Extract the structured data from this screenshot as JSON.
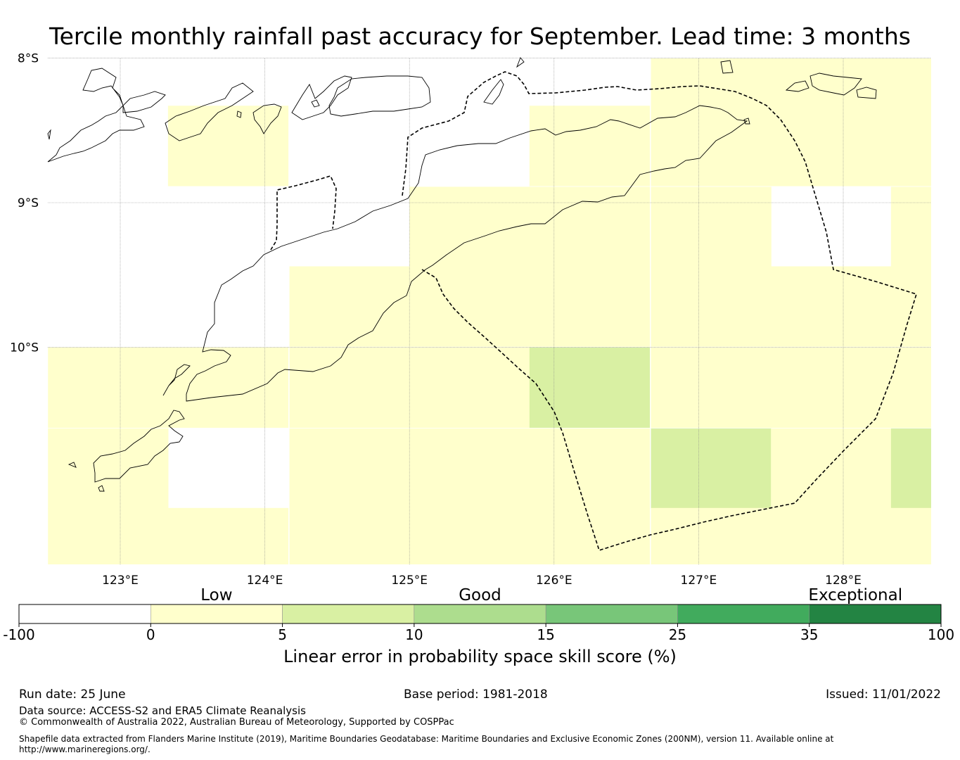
{
  "title": "Tercile monthly rainfall past accuracy for September. Lead time: 3 months",
  "lat_labels": [
    "8°S",
    "9°S",
    "10°S"
  ],
  "lon_labels": [
    "123°E",
    "124°E",
    "125°E",
    "126°E",
    "127°E",
    "128°E"
  ],
  "map": {
    "lon_range": [
      122.5,
      128.6
    ],
    "lat_range": [
      -11.5,
      -8.0
    ],
    "grid_lons": [
      123,
      124,
      125,
      126,
      127,
      128
    ],
    "grid_lats": [
      -8,
      -9,
      -10
    ],
    "colors": {
      "ocean": "#ffffff",
      "coast": "#000000",
      "eez": "#000000",
      "grid": "#888888"
    },
    "cell_size_deg": [
      0.833,
      0.556
    ],
    "cells": [
      {
        "lon": 126.67,
        "lat": -8.0,
        "category": "0 to 5"
      },
      {
        "lon": 127.5,
        "lat": -8.0,
        "category": "0 to 5"
      },
      {
        "lon": 128.33,
        "lat": -8.0,
        "category": "0 to 5"
      },
      {
        "lon": 123.33,
        "lat": -8.33,
        "category": "0 to 5"
      },
      {
        "lon": 125.83,
        "lat": -8.33,
        "category": "0 to 5"
      },
      {
        "lon": 126.67,
        "lat": -8.33,
        "category": "0 to 5"
      },
      {
        "lon": 127.5,
        "lat": -8.33,
        "category": "0 to 5"
      },
      {
        "lon": 128.33,
        "lat": -8.33,
        "category": "0 to 5"
      },
      {
        "lon": 125.0,
        "lat": -8.89,
        "category": "0 to 5"
      },
      {
        "lon": 125.83,
        "lat": -8.89,
        "category": "0 to 5"
      },
      {
        "lon": 126.67,
        "lat": -8.89,
        "category": "0 to 5"
      },
      {
        "lon": 128.33,
        "lat": -8.89,
        "category": "0 to 5"
      },
      {
        "lon": 124.17,
        "lat": -9.44,
        "category": "0 to 5"
      },
      {
        "lon": 125.0,
        "lat": -9.44,
        "category": "0 to 5"
      },
      {
        "lon": 125.83,
        "lat": -9.44,
        "category": "0 to 5"
      },
      {
        "lon": 126.67,
        "lat": -9.44,
        "category": "0 to 5"
      },
      {
        "lon": 127.5,
        "lat": -9.44,
        "category": "0 to 5"
      },
      {
        "lon": 128.33,
        "lat": -9.44,
        "category": "0 to 5"
      },
      {
        "lon": 122.5,
        "lat": -10.0,
        "category": "0 to 5"
      },
      {
        "lon": 123.33,
        "lat": -10.0,
        "category": "0 to 5"
      },
      {
        "lon": 124.17,
        "lat": -10.0,
        "category": "0 to 5"
      },
      {
        "lon": 125.0,
        "lat": -10.0,
        "category": "0 to 5"
      },
      {
        "lon": 125.83,
        "lat": -10.0,
        "category": "5 to 10"
      },
      {
        "lon": 126.67,
        "lat": -10.0,
        "category": "0 to 5"
      },
      {
        "lon": 127.5,
        "lat": -10.0,
        "category": "0 to 5"
      },
      {
        "lon": 128.33,
        "lat": -10.0,
        "category": "0 to 5"
      },
      {
        "lon": 122.5,
        "lat": -10.56,
        "category": "0 to 5"
      },
      {
        "lon": 124.17,
        "lat": -10.56,
        "category": "0 to 5"
      },
      {
        "lon": 125.0,
        "lat": -10.56,
        "category": "0 to 5"
      },
      {
        "lon": 125.83,
        "lat": -10.56,
        "category": "0 to 5"
      },
      {
        "lon": 126.67,
        "lat": -10.56,
        "category": "5 to 10"
      },
      {
        "lon": 127.5,
        "lat": -10.56,
        "category": "0 to 5"
      },
      {
        "lon": 128.33,
        "lat": -10.56,
        "category": "5 to 10"
      },
      {
        "lon": 122.5,
        "lat": -11.11,
        "category": "0 to 5"
      },
      {
        "lon": 123.33,
        "lat": -11.11,
        "category": "0 to 5"
      },
      {
        "lon": 124.17,
        "lat": -11.11,
        "category": "0 to 5"
      },
      {
        "lon": 125.0,
        "lat": -11.11,
        "category": "0 to 5"
      },
      {
        "lon": 125.83,
        "lat": -11.11,
        "category": "0 to 5"
      },
      {
        "lon": 126.67,
        "lat": -11.11,
        "category": "0 to 5"
      },
      {
        "lon": 127.5,
        "lat": -11.11,
        "category": "0 to 5"
      },
      {
        "lon": 128.33,
        "lat": -11.11,
        "category": "0 to 5"
      }
    ]
  },
  "colorbar": {
    "category_labels": [
      "Low",
      "Good",
      "Exceptional"
    ],
    "ticks": [
      "-100",
      "0",
      "5",
      "10",
      "15",
      "25",
      "35",
      "100"
    ],
    "bins": [
      {
        "range": "-100 to 0",
        "color": "#ffffff"
      },
      {
        "range": "0 to 5",
        "color": "#ffffcc"
      },
      {
        "range": "5 to 10",
        "color": "#d9f0a3"
      },
      {
        "range": "10 to 15",
        "color": "#addd8e"
      },
      {
        "range": "15 to 25",
        "color": "#78c679"
      },
      {
        "range": "25 to 35",
        "color": "#41ab5d"
      },
      {
        "range": "35 to 100",
        "color": "#238443"
      }
    ],
    "label": "Linear error in probability space skill score (%)"
  },
  "footer": {
    "run_date": "Run date: 25 June",
    "base_period": "Base period: 1981-2018",
    "issued": "Issued: 11/01/2022",
    "data_source": "Data source: ACCESS-S2 and ERA5 Climate Reanalysis",
    "copyright": "© Commonwealth of Australia 2022, Australian Bureau of Meteorology, Supported by COSPPac",
    "shapefile_line1": "Shapefile data extracted from Flanders Marine Institute (2019), Maritime Boundaries Geodatabase: Maritime Boundaries and Exclusive Economic Zones (200NM), version 11. Available online at",
    "shapefile_line2": "http://www.marineregions.org/."
  }
}
